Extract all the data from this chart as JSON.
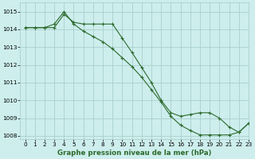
{
  "line1_x": [
    0,
    1,
    2,
    3,
    4,
    5,
    6,
    7,
    8,
    9,
    10,
    11,
    12,
    13,
    14,
    15,
    16,
    17,
    18,
    19,
    20,
    21,
    22,
    23
  ],
  "line1_y": [
    1014.1,
    1014.1,
    1014.1,
    1014.1,
    1014.85,
    1014.4,
    1014.3,
    1014.3,
    1014.3,
    1014.3,
    1013.5,
    1012.7,
    1011.85,
    1011.0,
    1010.0,
    1009.3,
    1009.1,
    1009.2,
    1009.3,
    1009.3,
    1009.0,
    1008.5,
    1008.2,
    1008.7
  ],
  "line2_x": [
    0,
    1,
    2,
    3,
    4,
    5,
    6,
    7,
    8,
    9,
    10,
    11,
    12,
    13,
    14,
    15,
    16,
    17,
    18,
    19,
    20,
    21,
    22,
    23
  ],
  "line2_y": [
    1014.1,
    1014.1,
    1014.1,
    1014.3,
    1015.0,
    1014.3,
    1013.9,
    1013.6,
    1013.3,
    1012.9,
    1012.4,
    1011.9,
    1011.3,
    1010.6,
    1009.9,
    1009.1,
    1008.6,
    1008.3,
    1008.05,
    1008.05,
    1008.05,
    1008.05,
    1008.2,
    1008.7
  ],
  "bg_color": "#cdeeed",
  "grid_color": "#aacfcd",
  "line_color": "#2d6a2d",
  "marker": "+",
  "xlabel": "Graphe pression niveau de la mer (hPa)",
  "xlim": [
    -0.5,
    23
  ],
  "ylim": [
    1007.8,
    1015.5
  ],
  "yticks": [
    1008,
    1009,
    1010,
    1011,
    1012,
    1013,
    1014,
    1015
  ],
  "xticks": [
    0,
    1,
    2,
    3,
    4,
    5,
    6,
    7,
    8,
    9,
    10,
    11,
    12,
    13,
    14,
    15,
    16,
    17,
    18,
    19,
    20,
    21,
    22,
    23
  ],
  "tick_fontsize": 5.2,
  "xlabel_fontsize": 6.2
}
